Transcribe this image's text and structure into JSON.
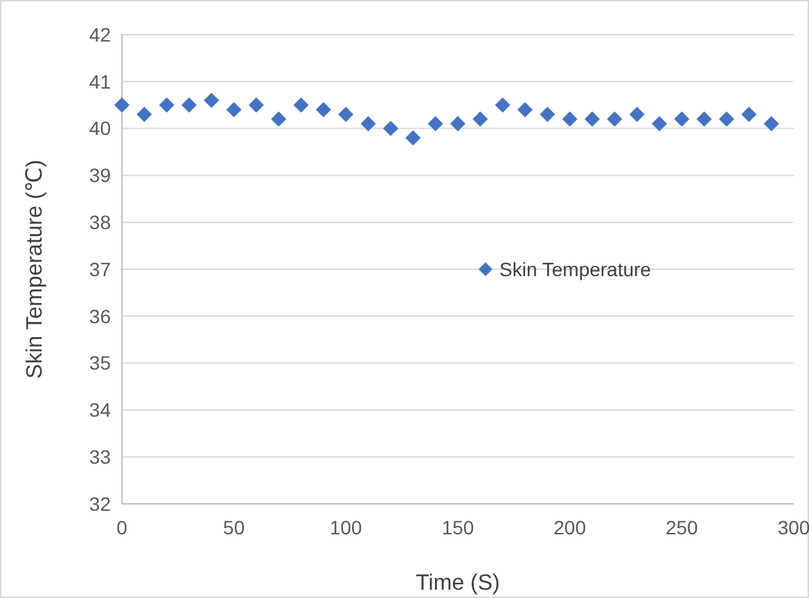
{
  "chart_data": {
    "type": "scatter",
    "xlabel": "Time (S)",
    "ylabel": "Skin Temperature (℃)",
    "x": [
      0,
      10,
      20,
      30,
      40,
      50,
      60,
      70,
      80,
      90,
      100,
      110,
      120,
      130,
      140,
      150,
      160,
      170,
      180,
      190,
      200,
      210,
      220,
      230,
      240,
      250,
      260,
      270,
      280,
      290
    ],
    "series": [
      {
        "name": "Skin Temperature",
        "color": "#4472c4",
        "values": [
          40.5,
          40.3,
          40.5,
          40.5,
          40.6,
          40.4,
          40.5,
          40.2,
          40.5,
          40.4,
          40.3,
          40.1,
          40.0,
          39.8,
          40.1,
          40.1,
          40.2,
          40.5,
          40.4,
          40.3,
          40.2,
          40.2,
          40.2,
          40.3,
          40.1,
          40.2,
          40.2,
          40.2,
          40.3,
          40.1
        ]
      }
    ],
    "xlim": [
      0,
      300
    ],
    "xticks": [
      0,
      50,
      100,
      150,
      200,
      250,
      300
    ],
    "ylim": [
      32,
      42
    ],
    "yticks": [
      32,
      33,
      34,
      35,
      36,
      37,
      38,
      39,
      40,
      41,
      42
    ],
    "grid": "y",
    "legend": "center",
    "marker": "diamond"
  }
}
